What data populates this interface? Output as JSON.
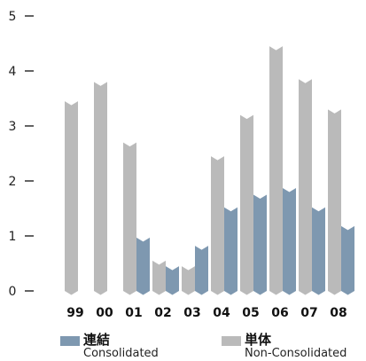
{
  "chart_data": {
    "type": "bar",
    "categories": [
      "99",
      "00",
      "01",
      "02",
      "03",
      "04",
      "05",
      "06",
      "07",
      "08"
    ],
    "series": [
      {
        "name": "単体 Non-Consolidated",
        "key": "non_consolidated",
        "color": "#bababa",
        "values": [
          3.45,
          3.8,
          2.7,
          0.55,
          0.45,
          2.45,
          3.2,
          4.45,
          3.85,
          3.3
        ]
      },
      {
        "name": "連結 Consolidated",
        "key": "consolidated",
        "color": "#7e98b0",
        "values": [
          null,
          null,
          0.97,
          0.45,
          0.82,
          1.52,
          1.75,
          1.87,
          1.52,
          1.18
        ]
      }
    ],
    "yticks": [
      0,
      1,
      2,
      3,
      4,
      5
    ],
    "ylim": [
      0,
      5
    ],
    "title": "",
    "xlabel": "",
    "ylabel": "",
    "grid": false,
    "legend_placement": "bottom"
  },
  "legend": {
    "consolidated": {
      "label_jp": "連結",
      "label_en": "Consolidated",
      "color": "#7e98b0"
    },
    "non_consolidated": {
      "label_jp": "単体",
      "label_en": "Non-Consolidated",
      "color": "#bababa"
    }
  }
}
